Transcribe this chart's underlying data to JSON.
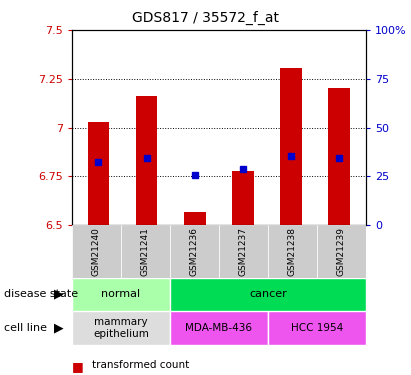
{
  "title": "GDS817 / 35572_f_at",
  "samples": [
    "GSM21240",
    "GSM21241",
    "GSM21236",
    "GSM21237",
    "GSM21238",
    "GSM21239"
  ],
  "transformed_counts": [
    7.03,
    7.16,
    6.565,
    6.775,
    7.305,
    7.2
  ],
  "percentile_ranks": [
    6.825,
    6.845,
    6.755,
    6.785,
    6.855,
    6.845
  ],
  "ylim_left": [
    6.5,
    7.5
  ],
  "ylim_right": [
    0,
    100
  ],
  "yticks_left": [
    6.5,
    6.75,
    7.0,
    7.25,
    7.5
  ],
  "ytick_labels_left": [
    "6.5",
    "6.75",
    "7",
    "7.25",
    "7.5"
  ],
  "yticks_right": [
    0,
    25,
    50,
    75,
    100
  ],
  "ytick_labels_right": [
    "0",
    "25",
    "50",
    "75",
    "100%"
  ],
  "bar_bottom": 6.5,
  "bar_color": "#cc0000",
  "percentile_color": "#0000cc",
  "disease_groups": [
    {
      "label": "normal",
      "cols": [
        0,
        1
      ],
      "color": "#aaffaa"
    },
    {
      "label": "cancer",
      "cols": [
        2,
        3,
        4,
        5
      ],
      "color": "#00dd55"
    }
  ],
  "cell_line_groups": [
    {
      "label": "mammary\nepithelium",
      "cols": [
        0,
        1
      ],
      "color": "#dddddd"
    },
    {
      "label": "MDA-MB-436",
      "cols": [
        2,
        3
      ],
      "color": "#ee55ee"
    },
    {
      "label": "HCC 1954",
      "cols": [
        4,
        5
      ],
      "color": "#ee55ee"
    }
  ],
  "tick_color_left": "#cc0000",
  "tick_color_right": "#0000cc",
  "label_disease": "disease state",
  "label_cell": "cell line",
  "bar_width": 0.45
}
